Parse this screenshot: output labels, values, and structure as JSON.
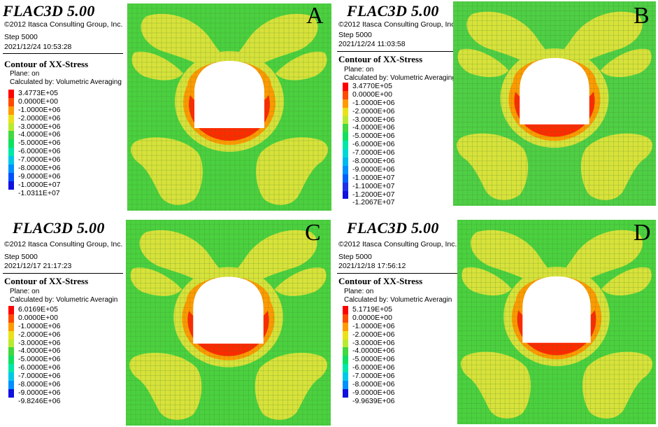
{
  "panels": [
    {
      "letter": "A",
      "software": "FLAC3D 5.00",
      "copyright": "©2012 Itasca Consulting Group, Inc.",
      "step": "Step 5000",
      "datetime": "2021/12/24 10:53:28",
      "contour_title": "Contour of XX-Stress",
      "plane": "Plane: on",
      "calc": "Calculated by: Volumetric Averaging",
      "legend": [
        "3.4773E+05",
        "0.0000E+00",
        "-1.0000E+06",
        "-2.0000E+06",
        "-3.0000E+06",
        "-4.0000E+06",
        "-5.0000E+06",
        "-6.0000E+06",
        "-7.0000E+06",
        "-8.0000E+06",
        "-9.0000E+06",
        "-1.0000E+07",
        "-1.0311E+07"
      ],
      "colors": [
        "#ff0000",
        "#ff4a00",
        "#ff9a00",
        "#e9e21a",
        "#b9ea30",
        "#41d840",
        "#10e060",
        "#00e8a8",
        "#00c8e8",
        "#0090ff",
        "#0050ff",
        "#1010e0"
      ]
    },
    {
      "letter": "B",
      "software": "FLAC3D 5.00",
      "copyright": "©2012 Itasca Consulting Group, Inc.",
      "step": "Step 5000",
      "datetime": "2021/12/24 11:03:58",
      "contour_title": "Contour of XX-Stress",
      "plane": "Plane: on",
      "calc": "Calculated by: Volumetric Averaging",
      "legend": [
        "3.4770E+05",
        "0.0000E+00",
        "-1.0000E+06",
        "-2.0000E+06",
        "-3.0000E+06",
        "-4.0000E+06",
        "-5.0000E+06",
        "-6.0000E+06",
        "-7.0000E+06",
        "-8.0000E+06",
        "-9.0000E+06",
        "-1.0000E+07",
        "-1.1000E+07",
        "-1.2000E+07",
        "-1.2067E+07"
      ],
      "colors": [
        "#ff0000",
        "#ff4a00",
        "#ff9a00",
        "#e9e21a",
        "#b9ea30",
        "#41d840",
        "#10e060",
        "#00e8a8",
        "#00d8d8",
        "#00b8f0",
        "#0090ff",
        "#0060ff",
        "#2030e8",
        "#1010e0"
      ]
    },
    {
      "letter": "C",
      "software": "FLAC3D 5.00",
      "copyright": "©2012 Itasca Consulting Group, Inc.",
      "step": "Step 5000",
      "datetime": "2021/12/17 21:17:23",
      "contour_title": "Contour of XX-Stress",
      "plane": "Plane: on",
      "calc": "Calculated by: Volumetric Averagin",
      "legend": [
        "6.0169E+05",
        "0.0000E+00",
        "-1.0000E+06",
        "-2.0000E+06",
        "-3.0000E+06",
        "-4.0000E+06",
        "-5.0000E+06",
        "-6.0000E+06",
        "-7.0000E+06",
        "-8.0000E+06",
        "-9.0000E+06",
        "-9.8246E+06"
      ],
      "colors": [
        "#ff0000",
        "#ff4a00",
        "#ff9a00",
        "#e9e21a",
        "#b9ea30",
        "#41d840",
        "#10e060",
        "#00e8a8",
        "#00c8e8",
        "#0090ff",
        "#1010e0"
      ]
    },
    {
      "letter": "D",
      "software": "FLAC3D 5.00",
      "copyright": "©2012 Itasca Consulting Group, Inc.",
      "step": "Step 5000",
      "datetime": "2021/12/18 17:56:12",
      "contour_title": "Contour of XX-Stress",
      "plane": "Plane: on",
      "calc": "Calculated by: Volumetric Averagin",
      "legend": [
        "5.1719E+05",
        "0.0000E+00",
        "-1.0000E+06",
        "-2.0000E+06",
        "-3.0000E+06",
        "-4.0000E+06",
        "-5.0000E+06",
        "-6.0000E+06",
        "-7.0000E+06",
        "-8.0000E+06",
        "-9.0000E+06",
        "-9.9639E+06"
      ],
      "colors": [
        "#ff0000",
        "#ff4a00",
        "#ff9a00",
        "#e9e21a",
        "#b9ea30",
        "#41d840",
        "#10e060",
        "#00e8a8",
        "#00c8e8",
        "#0090ff",
        "#1010e0"
      ]
    }
  ],
  "palette": {
    "background_green": "#4bd13f",
    "yellow_zone": "#d8e23a",
    "orange_zone": "#ff9a00",
    "red_zone": "#ff2a00",
    "opening": "#ffffff",
    "mesh_line": "#3a7a30"
  }
}
